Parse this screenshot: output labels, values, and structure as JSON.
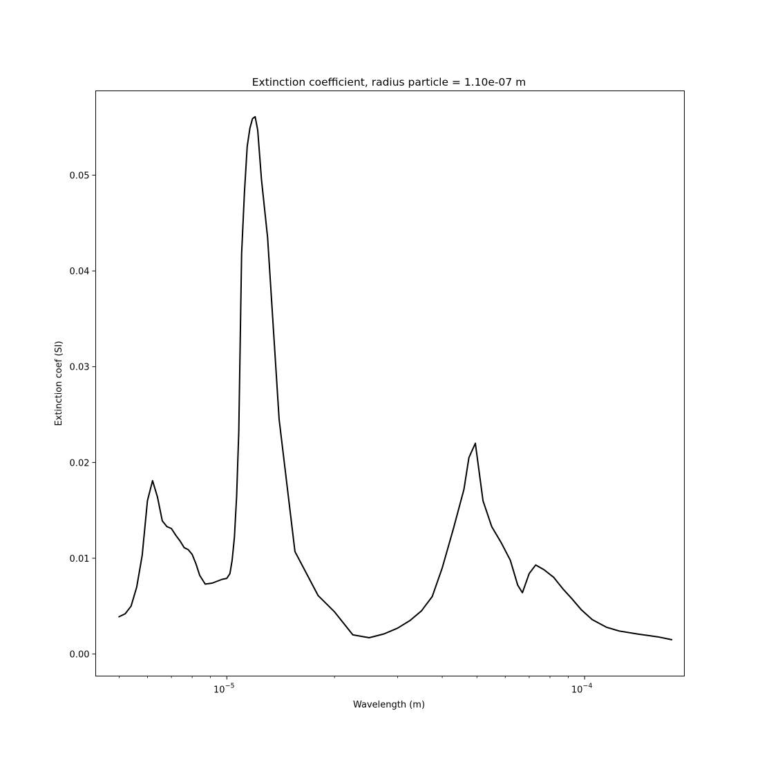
{
  "chart_data": {
    "type": "line",
    "title": "Extinction coefficient, radius particle = 1.10e-07 m",
    "xlabel": "Wavelength (m)",
    "ylabel": "Extinction coef (SI)",
    "xscale": "log",
    "xlim": [
      4.3e-06,
      0.00019
    ],
    "ylim": [
      -0.0023,
      0.0588
    ],
    "grid": false,
    "line_color": "#000000",
    "x_major_ticks": [
      {
        "value": 1e-05,
        "base": "10",
        "exp": "−5"
      },
      {
        "value": 0.0001,
        "base": "10",
        "exp": "−4"
      }
    ],
    "x_minor_ticks": [
      5e-06,
      6e-06,
      7e-06,
      8e-06,
      9e-06,
      2e-05,
      3e-05,
      4e-05,
      5e-05,
      6e-05,
      7e-05,
      8e-05,
      9e-05
    ],
    "y_ticks": [
      {
        "value": 0.0,
        "label": "0.00"
      },
      {
        "value": 0.01,
        "label": "0.01"
      },
      {
        "value": 0.02,
        "label": "0.02"
      },
      {
        "value": 0.03,
        "label": "0.03"
      },
      {
        "value": 0.04,
        "label": "0.04"
      },
      {
        "value": 0.05,
        "label": "0.05"
      }
    ],
    "series": [
      {
        "x": [
          5e-06,
          5.2e-06,
          5.4e-06,
          5.6e-06,
          5.8e-06,
          6e-06,
          6.2e-06,
          6.4e-06,
          6.6e-06,
          6.8e-06,
          7e-06,
          7.2e-06,
          7.4e-06,
          7.6e-06,
          7.8e-06,
          8e-06,
          8.2e-06,
          8.4e-06,
          8.7e-06,
          9.1e-06,
          9.7e-06,
          1e-05,
          1.02e-05,
          1.035e-05,
          1.05e-05,
          1.065e-05,
          1.08e-05,
          1.1e-05,
          1.12e-05,
          1.14e-05,
          1.16e-05,
          1.18e-05,
          1.2e-05,
          1.22e-05,
          1.25e-05,
          1.3e-05,
          1.4e-05,
          1.55e-05,
          1.8e-05,
          2e-05,
          2.25e-05,
          2.5e-05,
          2.75e-05,
          3e-05,
          3.25e-05,
          3.5e-05,
          3.75e-05,
          4e-05,
          4.3e-05,
          4.6e-05,
          4.75e-05,
          4.95e-05,
          5.2e-05,
          5.5e-05,
          5.85e-05,
          6.2e-05,
          6.5e-05,
          6.7e-05,
          7e-05,
          7.3e-05,
          7.7e-05,
          8.2e-05,
          8.7e-05,
          9.2e-05,
          9.8e-05,
          0.000105,
          0.000115,
          0.000125,
          0.00014,
          0.00016,
          0.000175
        ],
        "values": [
          0.0039,
          0.0042,
          0.005,
          0.007,
          0.0103,
          0.016,
          0.0181,
          0.0164,
          0.0139,
          0.0133,
          0.0131,
          0.0124,
          0.0118,
          0.0111,
          0.0109,
          0.0104,
          0.0094,
          0.0082,
          0.0073,
          0.0074,
          0.0078,
          0.0079,
          0.0084,
          0.0098,
          0.0122,
          0.0165,
          0.0232,
          0.0418,
          0.0482,
          0.053,
          0.0549,
          0.0559,
          0.0561,
          0.0547,
          0.0495,
          0.0435,
          0.0245,
          0.0107,
          0.0061,
          0.0044,
          0.002,
          0.0017,
          0.0021,
          0.0027,
          0.0035,
          0.0045,
          0.006,
          0.009,
          0.0131,
          0.0172,
          0.0205,
          0.022,
          0.016,
          0.0133,
          0.0116,
          0.0098,
          0.0072,
          0.0064,
          0.0084,
          0.0093,
          0.0088,
          0.008,
          0.0068,
          0.0058,
          0.0046,
          0.0036,
          0.0028,
          0.0024,
          0.0021,
          0.0018,
          0.0015
        ]
      }
    ]
  }
}
